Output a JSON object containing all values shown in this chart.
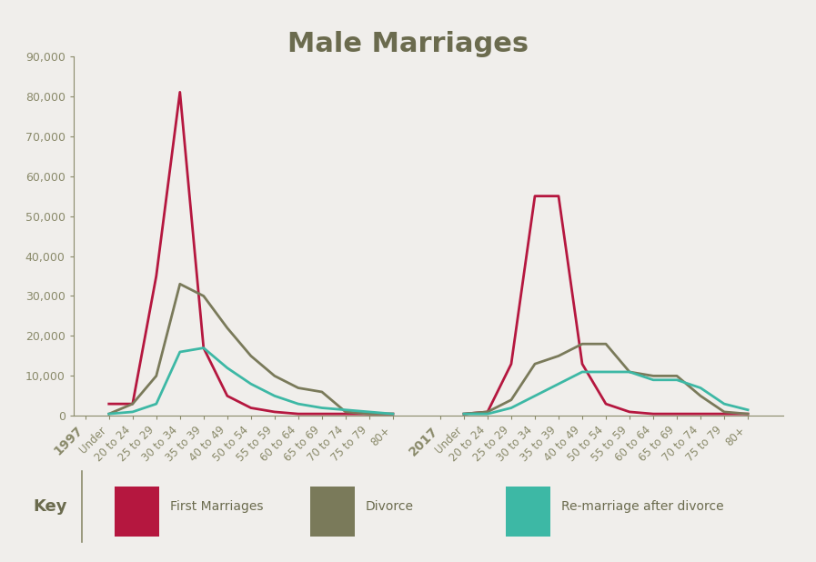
{
  "title": "Male Marriages",
  "background_color": "#f0eeeb",
  "title_color": "#6b6b4e",
  "axis_color": "#8a8a6a",
  "age_labels": [
    "Under",
    "20 to 24",
    "25 to 29",
    "30 to 34",
    "35 to 39",
    "40 to 49",
    "50 to 54",
    "55 to 59",
    "60 to 64",
    "65 to 69",
    "70 to 74",
    "75 to 79",
    "80+"
  ],
  "first_marriages_1997": [
    3000,
    3000,
    35000,
    81000,
    17000,
    5000,
    2000,
    1000,
    500,
    500,
    500,
    500,
    500
  ],
  "divorce_1997": [
    500,
    3000,
    10000,
    33000,
    30000,
    22000,
    15000,
    10000,
    7000,
    6000,
    1000,
    500,
    500
  ],
  "remarriage_1997": [
    500,
    1000,
    3000,
    16000,
    17000,
    12000,
    8000,
    5000,
    3000,
    2000,
    1500,
    1000,
    500
  ],
  "first_marriages_2017": [
    500,
    1000,
    13000,
    55000,
    55000,
    13000,
    3000,
    1000,
    500,
    500,
    500,
    500,
    500
  ],
  "divorce_2017": [
    500,
    1000,
    4000,
    13000,
    15000,
    18000,
    18000,
    11000,
    10000,
    10000,
    5000,
    1000,
    500
  ],
  "remarriage_2017": [
    500,
    500,
    2000,
    5000,
    8000,
    11000,
    11000,
    11000,
    9000,
    9000,
    7000,
    3000,
    1500
  ],
  "color_first": "#b5173f",
  "color_divorce": "#7a7a5a",
  "color_remarriage": "#3db8a5",
  "ylim": [
    0,
    90000
  ],
  "yticks": [
    0,
    10000,
    20000,
    30000,
    40000,
    50000,
    60000,
    70000,
    80000,
    90000
  ],
  "ytick_labels": [
    "0",
    "10,000",
    "20,000",
    "30,000",
    "40,000",
    "50,000",
    "60,000",
    "70,000",
    "80,000",
    "90,000"
  ],
  "legend_labels": [
    "First Marriages",
    "Divorce",
    "Re-marriage after divorce"
  ],
  "key_label": "Key",
  "title_fontsize": 22
}
